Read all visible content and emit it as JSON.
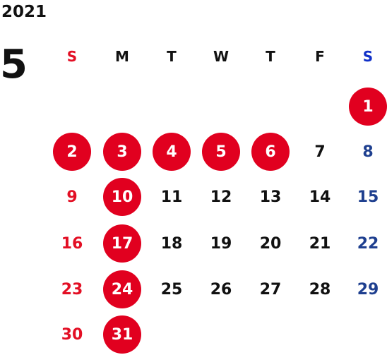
{
  "year": "2021",
  "month": "5",
  "weekday_headers": [
    {
      "label": "S",
      "kind": "sun"
    },
    {
      "label": "M",
      "kind": "week"
    },
    {
      "label": "T",
      "kind": "week"
    },
    {
      "label": "W",
      "kind": "week"
    },
    {
      "label": "T",
      "kind": "week"
    },
    {
      "label": "F",
      "kind": "week"
    },
    {
      "label": "S",
      "kind": "sat"
    }
  ],
  "first_weekday_index": 6,
  "days": [
    {
      "day": "1",
      "holiday": true
    },
    {
      "day": "2",
      "holiday": true
    },
    {
      "day": "3",
      "holiday": true
    },
    {
      "day": "4",
      "holiday": true
    },
    {
      "day": "5",
      "holiday": true
    },
    {
      "day": "6",
      "holiday": true
    },
    {
      "day": "7",
      "holiday": false
    },
    {
      "day": "8",
      "holiday": false
    },
    {
      "day": "9",
      "holiday": false
    },
    {
      "day": "10",
      "holiday": true
    },
    {
      "day": "11",
      "holiday": false
    },
    {
      "day": "12",
      "holiday": false
    },
    {
      "day": "13",
      "holiday": false
    },
    {
      "day": "14",
      "holiday": false
    },
    {
      "day": "15",
      "holiday": false
    },
    {
      "day": "16",
      "holiday": false
    },
    {
      "day": "17",
      "holiday": true
    },
    {
      "day": "18",
      "holiday": false
    },
    {
      "day": "19",
      "holiday": false
    },
    {
      "day": "20",
      "holiday": false
    },
    {
      "day": "21",
      "holiday": false
    },
    {
      "day": "22",
      "holiday": false
    },
    {
      "day": "23",
      "holiday": false
    },
    {
      "day": "24",
      "holiday": true
    },
    {
      "day": "25",
      "holiday": false
    },
    {
      "day": "26",
      "holiday": false
    },
    {
      "day": "27",
      "holiday": false
    },
    {
      "day": "28",
      "holiday": false
    },
    {
      "day": "29",
      "holiday": false
    },
    {
      "day": "30",
      "holiday": false
    },
    {
      "day": "31",
      "holiday": true
    }
  ],
  "colors": {
    "holiday_fill": "#e1001f",
    "holiday_text": "#ffffff",
    "sunday_text": "#e30f24",
    "saturday_text": "#1e3f8f",
    "saturday_header": "#1030c8",
    "weekday_text": "#111111"
  }
}
